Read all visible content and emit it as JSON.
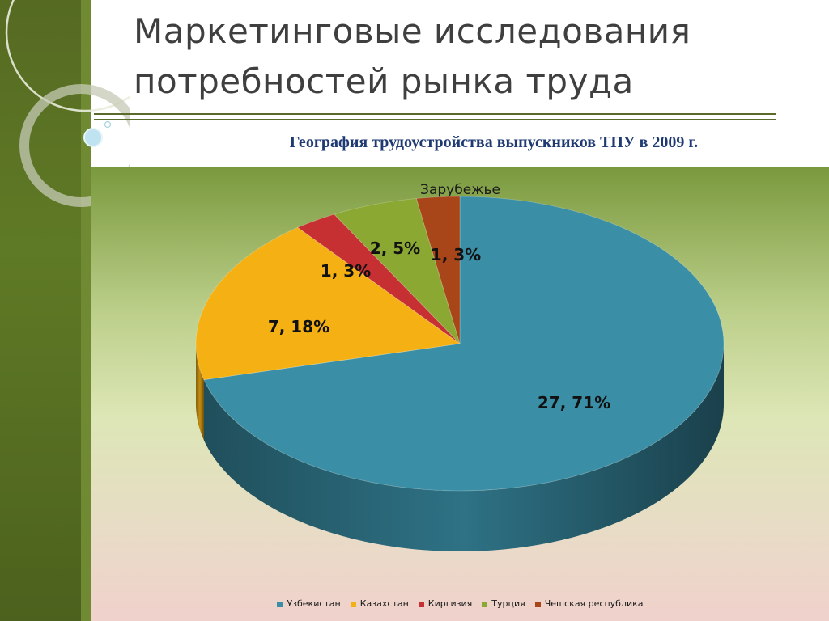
{
  "slide": {
    "title": "Маркетинговые исследования потребностей рынка труда",
    "subtitle": "География трудоустройства выпускников ТПУ в 2009 г."
  },
  "theme": {
    "sidebar": "#566a22",
    "rule": "#5a6b2c",
    "title_color": "#3f3f3f",
    "subtitle_color": "#1f3a73"
  },
  "chart_data": {
    "type": "pie",
    "title": "Зарубежье",
    "three_d": true,
    "legend_position": "bottom",
    "categories": [
      "Узбекистан",
      "Казахстан",
      "Киргизия",
      "Турция",
      "Чешская республика"
    ],
    "counts": [
      27,
      7,
      1,
      2,
      1
    ],
    "percents": [
      71,
      18,
      3,
      5,
      3
    ],
    "labels": [
      "27, 71%",
      "7, 18%",
      "1, 3%",
      "2, 5%",
      "1, 3%"
    ],
    "colors": [
      "#3a8fa6",
      "#f5b014",
      "#c63032",
      "#8aa832",
      "#a8461a"
    ]
  }
}
